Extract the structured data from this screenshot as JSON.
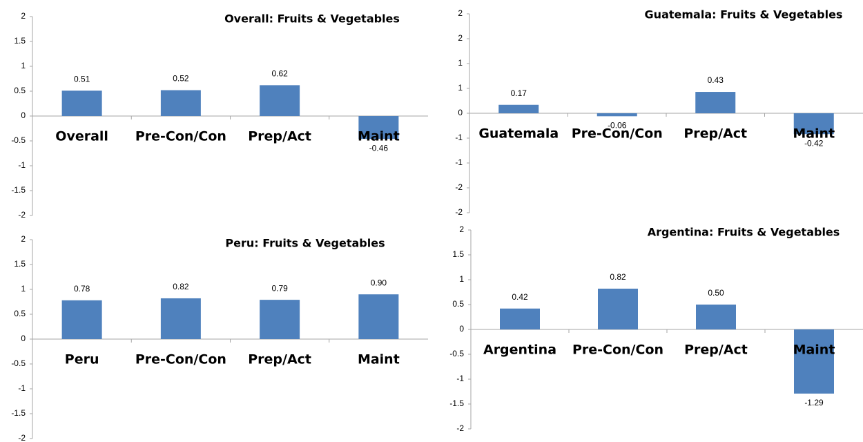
{
  "chart_data": [
    {
      "type": "bar",
      "title": "Overall: Fruits & Vegetables",
      "categories": [
        "Overall",
        "Pre-Con/Con",
        "Prep/Act",
        "Maint"
      ],
      "values": [
        0.51,
        0.52,
        0.62,
        -0.46
      ],
      "value_labels": [
        "0.51",
        "0.52",
        "0.62",
        "-0.46"
      ],
      "color": "#4f81bd",
      "ylim": [
        -2,
        2
      ],
      "yticks": [
        2,
        1.5,
        1,
        0.5,
        0,
        -0.5,
        -1,
        -1.5,
        -2
      ]
    },
    {
      "type": "bar",
      "title": "Guatemala: Fruits & Vegetables",
      "categories": [
        "Guatemala",
        "Pre-Con/Con",
        "Prep/Act",
        "Maint"
      ],
      "values": [
        0.17,
        -0.06,
        0.43,
        -0.42
      ],
      "value_labels": [
        "0.17",
        "-0.06",
        "0.43",
        "-0.42"
      ],
      "color": "#4f81bd",
      "ylim": [
        -2,
        2
      ],
      "yticks": [
        2,
        {
          "value": 1.5,
          "label": "2"
        },
        1,
        {
          "value": 0.5,
          "label": "1"
        },
        0,
        {
          "value": -0.5,
          "label": "-1"
        },
        -1,
        {
          "value": -1.5,
          "label": "-2"
        },
        -2
      ]
    },
    {
      "type": "bar",
      "title": "Peru: Fruits & Vegetables",
      "categories": [
        "Peru",
        "Pre-Con/Con",
        "Prep/Act",
        "Maint"
      ],
      "values": [
        0.78,
        0.82,
        0.79,
        0.9
      ],
      "value_labels": [
        "0.78",
        "0.82",
        "0.79",
        "0.90"
      ],
      "color": "#4f81bd",
      "ylim": [
        -2,
        2
      ],
      "yticks": [
        2,
        1.5,
        1,
        0.5,
        0,
        -0.5,
        -1,
        -1.5,
        -2
      ]
    },
    {
      "type": "bar",
      "title": "Argentina: Fruits & Vegetables",
      "categories": [
        "Argentina",
        "Pre-Con/Con",
        "Prep/Act",
        "Maint"
      ],
      "values": [
        0.42,
        0.82,
        0.5,
        -1.29
      ],
      "value_labels": [
        "0.42",
        "0.82",
        "0.50",
        "-1.29"
      ],
      "color": "#4f81bd",
      "ylim": [
        -2,
        2
      ],
      "yticks": [
        2,
        1.5,
        1,
        0.5,
        0,
        -0.5,
        -1,
        -1.5,
        -2
      ]
    }
  ]
}
